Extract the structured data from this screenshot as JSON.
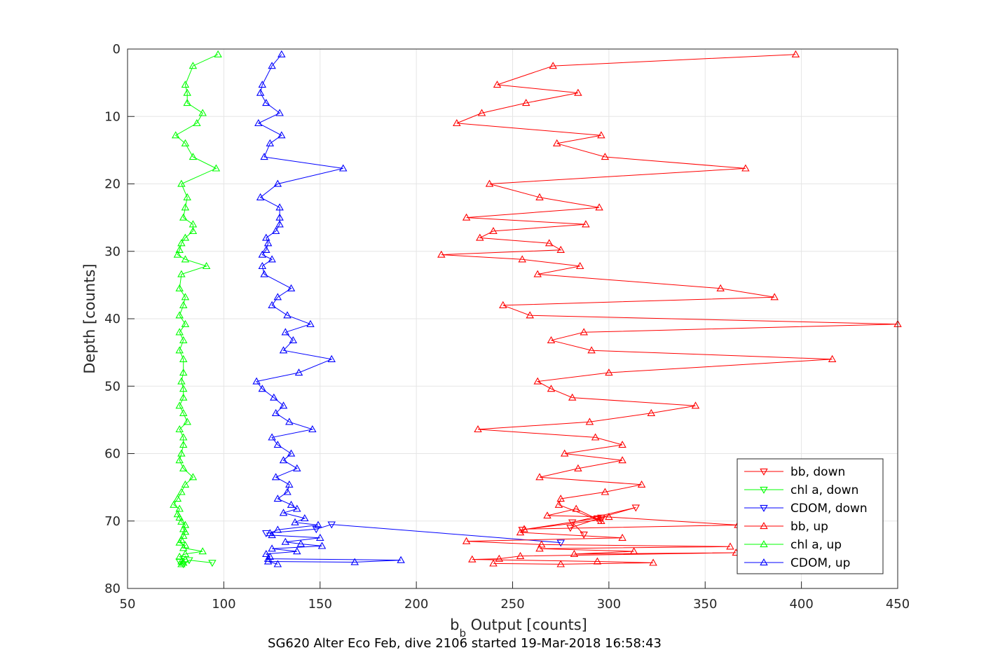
{
  "chart_data": {
    "type": "scatter",
    "title": "",
    "xlabel": "b",
    "xlabel_sub": "b",
    "xlabel_rest": " Output [counts]",
    "ylabel": "Depth [counts]",
    "caption": "SG620 Alter Eco Feb, dive 2106 started 19-Mar-2018 16:58:43",
    "xlim": [
      50,
      450
    ],
    "ylim": [
      0,
      80
    ],
    "y_reversed": true,
    "grid": true,
    "x_ticks": [
      50,
      100,
      150,
      200,
      250,
      300,
      350,
      400,
      450
    ],
    "y_ticks": [
      0,
      10,
      20,
      30,
      40,
      50,
      60,
      70,
      80
    ],
    "legend_position": "bottom-right",
    "series": [
      {
        "name": "bb, down",
        "color": "#ff0000",
        "marker": "triangle-down",
        "points": [
          [
            280,
            71
          ],
          [
            296,
            69.5
          ],
          [
            255,
            71.3
          ],
          [
            296,
            69.8
          ],
          [
            294,
            69.6
          ],
          [
            314,
            68
          ],
          [
            281,
            70.2
          ],
          [
            287,
            72
          ]
        ]
      },
      {
        "name": "chl a, down",
        "color": "#00ff00",
        "marker": "triangle-down",
        "points": [
          [
            94,
            76.2
          ],
          [
            82,
            75.8
          ],
          [
            79,
            76.4
          ],
          [
            77,
            76
          ]
        ]
      },
      {
        "name": "CDOM, down",
        "color": "#0000ff",
        "marker": "triangle-down",
        "points": [
          [
            275,
            73.2
          ],
          [
            156,
            70.5
          ],
          [
            148,
            71.2
          ],
          [
            122,
            71.8
          ]
        ]
      },
      {
        "name": "bb, up",
        "color": "#ff0000",
        "marker": "triangle-up",
        "points": [
          [
            397,
            0.8
          ],
          [
            271,
            2.5
          ],
          [
            242,
            5.3
          ],
          [
            284,
            6.5
          ],
          [
            257,
            8
          ],
          [
            234,
            9.5
          ],
          [
            221,
            11
          ],
          [
            296,
            12.8
          ],
          [
            273,
            14
          ],
          [
            298,
            16
          ],
          [
            371,
            17.7
          ],
          [
            238,
            20
          ],
          [
            264,
            22
          ],
          [
            295,
            23.5
          ],
          [
            226,
            25
          ],
          [
            288,
            26
          ],
          [
            240,
            27
          ],
          [
            233,
            28
          ],
          [
            269,
            28.8
          ],
          [
            275,
            29.8
          ],
          [
            213,
            30.5
          ],
          [
            255,
            31.2
          ],
          [
            285,
            32.2
          ],
          [
            263,
            33.4
          ],
          [
            358,
            35.5
          ],
          [
            386,
            36.8
          ],
          [
            245,
            38
          ],
          [
            259,
            39.5
          ],
          [
            450,
            40.8
          ],
          [
            287,
            42
          ],
          [
            270,
            43.2
          ],
          [
            291,
            44.7
          ],
          [
            416,
            46
          ],
          [
            300,
            48
          ],
          [
            263,
            49.3
          ],
          [
            270,
            50.4
          ],
          [
            281,
            51.7
          ],
          [
            345,
            52.9
          ],
          [
            322,
            54
          ],
          [
            290,
            55.3
          ],
          [
            232,
            56.4
          ],
          [
            293,
            57.6
          ],
          [
            307,
            58.7
          ],
          [
            277,
            60
          ],
          [
            307,
            61
          ],
          [
            284,
            62.2
          ],
          [
            264,
            63.5
          ],
          [
            317,
            64.6
          ],
          [
            298,
            65.7
          ],
          [
            275,
            66.7
          ],
          [
            274,
            67.6
          ],
          [
            296,
            70
          ],
          [
            283,
            68.2
          ],
          [
            268,
            69.2
          ],
          [
            300,
            69.4
          ],
          [
            367,
            70.6
          ],
          [
            256,
            71.2
          ],
          [
            254,
            71.7
          ],
          [
            307,
            72.5
          ],
          [
            226,
            73
          ],
          [
            265,
            73.5
          ],
          [
            363,
            73.8
          ],
          [
            264,
            74.1
          ],
          [
            313,
            74.5
          ],
          [
            282,
            74.9
          ],
          [
            366,
            74.7
          ],
          [
            254,
            75.2
          ],
          [
            243,
            75.6
          ],
          [
            229,
            75.7
          ],
          [
            294,
            76
          ],
          [
            323,
            76.2
          ],
          [
            275,
            76.4
          ],
          [
            240,
            76.3
          ]
        ]
      },
      {
        "name": "chl a, up",
        "color": "#00ff00",
        "marker": "triangle-up",
        "points": [
          [
            97,
            0.8
          ],
          [
            84,
            2.5
          ],
          [
            80,
            5.3
          ],
          [
            81,
            6.5
          ],
          [
            81,
            8
          ],
          [
            89,
            9.5
          ],
          [
            86,
            11
          ],
          [
            75,
            12.8
          ],
          [
            80,
            14
          ],
          [
            84,
            16
          ],
          [
            96,
            17.7
          ],
          [
            78,
            20
          ],
          [
            81,
            22
          ],
          [
            80,
            23.5
          ],
          [
            79,
            25
          ],
          [
            84,
            26
          ],
          [
            84,
            27
          ],
          [
            80,
            28
          ],
          [
            78,
            28.8
          ],
          [
            77,
            29.8
          ],
          [
            76,
            30.5
          ],
          [
            80,
            31.2
          ],
          [
            91,
            32.2
          ],
          [
            78,
            33.4
          ],
          [
            77,
            35.5
          ],
          [
            80,
            36.8
          ],
          [
            79,
            38
          ],
          [
            77,
            39.5
          ],
          [
            80,
            40.8
          ],
          [
            77,
            42
          ],
          [
            79,
            43.2
          ],
          [
            77,
            44.7
          ],
          [
            79,
            46
          ],
          [
            79,
            48
          ],
          [
            78,
            49.3
          ],
          [
            79,
            50.4
          ],
          [
            79,
            51.7
          ],
          [
            77,
            52.9
          ],
          [
            79,
            54
          ],
          [
            81,
            55.3
          ],
          [
            77,
            56.4
          ],
          [
            79,
            57.6
          ],
          [
            79,
            58.7
          ],
          [
            78,
            60
          ],
          [
            77,
            61
          ],
          [
            79,
            62.2
          ],
          [
            84,
            63.5
          ],
          [
            80,
            64.6
          ],
          [
            78,
            65.7
          ],
          [
            76,
            66.7
          ],
          [
            74,
            67.6
          ],
          [
            77,
            68.2
          ],
          [
            76,
            69
          ],
          [
            77,
            69.5
          ],
          [
            78,
            70.1
          ],
          [
            80,
            70.6
          ],
          [
            79,
            71.2
          ],
          [
            80,
            71.6
          ],
          [
            79,
            72.2
          ],
          [
            78,
            72.8
          ],
          [
            77,
            73.2
          ],
          [
            80,
            73.6
          ],
          [
            79,
            74
          ],
          [
            89,
            74.5
          ],
          [
            80,
            74.9
          ],
          [
            77,
            75.3
          ],
          [
            80,
            75.7
          ],
          [
            78,
            76
          ],
          [
            78,
            76.4
          ],
          [
            79,
            76.2
          ]
        ]
      },
      {
        "name": "CDOM, up",
        "color": "#0000ff",
        "marker": "triangle-up",
        "points": [
          [
            130,
            0.8
          ],
          [
            125,
            2.5
          ],
          [
            120,
            5.3
          ],
          [
            119,
            6.5
          ],
          [
            122,
            8
          ],
          [
            129,
            9.5
          ],
          [
            118,
            11
          ],
          [
            130,
            12.8
          ],
          [
            124,
            14
          ],
          [
            121,
            16
          ],
          [
            162,
            17.7
          ],
          [
            128,
            20
          ],
          [
            119,
            22
          ],
          [
            129,
            23.5
          ],
          [
            129,
            25
          ],
          [
            129,
            26
          ],
          [
            127,
            27
          ],
          [
            122,
            28
          ],
          [
            123,
            28.8
          ],
          [
            122,
            29.8
          ],
          [
            120,
            30.5
          ],
          [
            125,
            31.2
          ],
          [
            120,
            32.2
          ],
          [
            121,
            33.4
          ],
          [
            135,
            35.5
          ],
          [
            128,
            36.8
          ],
          [
            125,
            38
          ],
          [
            133,
            39.5
          ],
          [
            145,
            40.8
          ],
          [
            132,
            42
          ],
          [
            136,
            43.2
          ],
          [
            131,
            44.7
          ],
          [
            156,
            46
          ],
          [
            139,
            48
          ],
          [
            117,
            49.3
          ],
          [
            120,
            50.4
          ],
          [
            126,
            51.7
          ],
          [
            131,
            52.9
          ],
          [
            127,
            54
          ],
          [
            134,
            55.3
          ],
          [
            146,
            56.4
          ],
          [
            125,
            57.6
          ],
          [
            128,
            58.7
          ],
          [
            135,
            60
          ],
          [
            131,
            61
          ],
          [
            138,
            62.2
          ],
          [
            127,
            63.5
          ],
          [
            134,
            64.6
          ],
          [
            133,
            65.7
          ],
          [
            128,
            66.7
          ],
          [
            135,
            67.6
          ],
          [
            138,
            68.2
          ],
          [
            131,
            68.8
          ],
          [
            142,
            69.6
          ],
          [
            137,
            70.2
          ],
          [
            149,
            70.6
          ],
          [
            128,
            71.3
          ],
          [
            124,
            71.8
          ],
          [
            125,
            72.1
          ],
          [
            150,
            72.5
          ],
          [
            132,
            73.1
          ],
          [
            140,
            73.4
          ],
          [
            151,
            73.7
          ],
          [
            125,
            74.1
          ],
          [
            138,
            74.5
          ],
          [
            122,
            74.9
          ],
          [
            124,
            75.3
          ],
          [
            123,
            75.6
          ],
          [
            192,
            75.8
          ],
          [
            168,
            76.1
          ],
          [
            123,
            76
          ],
          [
            128,
            76.4
          ]
        ]
      }
    ]
  }
}
